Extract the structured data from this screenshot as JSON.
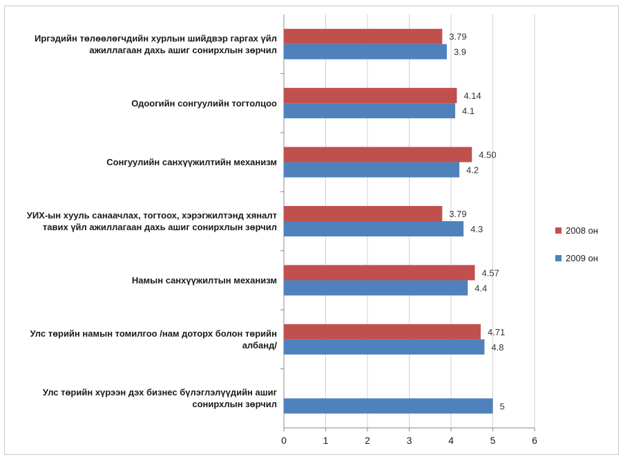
{
  "chart_data": {
    "type": "bar",
    "orientation": "horizontal",
    "categories": [
      "Иргэдийн төлөөлөгчдийн хурлын шийдвэр гаргах үйл ажиллагаан дахь ашиг сонирхлын зөрчил",
      "Одоогийн сонгуулийн тогтолцоо",
      "Сонгуулийн санхүүжилтийн механизм",
      "УИХ-ын хууль санаачлах, тогтоох, хэрэгжилтэнд хяналт тавих үйл ажиллагаан дахь ашиг сонирхлын зөрчил",
      "Намын санхүүжилтын механизм",
      "Улс төрийн намын томилгоо /нам доторх болон төрийн албанд/",
      "Улс төрийн хүрээн дэх бизнес бүлэглэлүүдийн ашиг сонирхлын зөрчил"
    ],
    "series": [
      {
        "name": "2008 он",
        "color": "#c0504d",
        "values": [
          3.79,
          4.14,
          4.5,
          3.79,
          4.57,
          4.71,
          null
        ],
        "labels": [
          "3.79",
          "4.14",
          "4.50",
          "3.79",
          "4.57",
          "4.71",
          ""
        ]
      },
      {
        "name": "2009 он",
        "color": "#4f81bd",
        "values": [
          3.9,
          4.1,
          4.2,
          4.3,
          4.4,
          4.8,
          5
        ],
        "labels": [
          "3.9",
          "4.1",
          "4.2",
          "4.3",
          "4.4",
          "4.8",
          "5"
        ]
      }
    ],
    "xlim": [
      0,
      6
    ],
    "xticks": [
      "0",
      "1",
      "2",
      "3",
      "4",
      "5",
      "6"
    ],
    "grid": true,
    "legend_position": "right"
  }
}
